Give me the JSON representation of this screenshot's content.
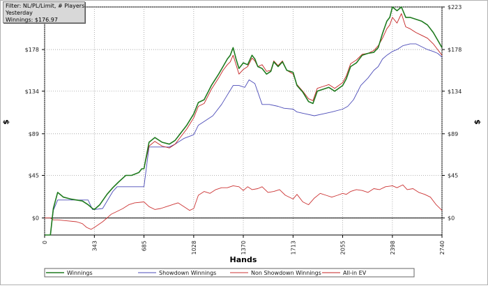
{
  "filter_box": {
    "line1": "Filter: NL/PL/Limit, # Players",
    "line2": "Yesterday",
    "line3": "Winnings: $176.97"
  },
  "chart_data": {
    "type": "line",
    "xlabel": "Hands",
    "ylabel": "$",
    "xlim": [
      0,
      2740
    ],
    "ylim": [
      -18,
      223
    ],
    "x_ticks": [
      0,
      343,
      685,
      1028,
      1370,
      1713,
      2055,
      2398,
      2740
    ],
    "y_ticks": [
      {
        "value": 0,
        "label": "$0"
      },
      {
        "value": 45,
        "label": "$45"
      },
      {
        "value": 89,
        "label": "$89"
      },
      {
        "value": 134,
        "label": "$134"
      },
      {
        "value": 178,
        "label": "$178"
      },
      {
        "value": 223,
        "label": "$223"
      }
    ],
    "grid": true,
    "legend_position": "bottom",
    "series": [
      {
        "name": "Winnings",
        "color": "#1e7a1e",
        "points": [
          [
            0,
            -18
          ],
          [
            40,
            -18
          ],
          [
            60,
            10
          ],
          [
            90,
            27
          ],
          [
            130,
            22
          ],
          [
            180,
            20
          ],
          [
            260,
            18
          ],
          [
            300,
            14
          ],
          [
            330,
            10
          ],
          [
            343,
            9
          ],
          [
            380,
            14
          ],
          [
            430,
            25
          ],
          [
            470,
            32
          ],
          [
            510,
            38
          ],
          [
            560,
            45
          ],
          [
            600,
            45
          ],
          [
            650,
            48
          ],
          [
            670,
            52
          ],
          [
            685,
            52
          ],
          [
            720,
            80
          ],
          [
            760,
            85
          ],
          [
            810,
            80
          ],
          [
            860,
            78
          ],
          [
            900,
            82
          ],
          [
            940,
            90
          ],
          [
            980,
            98
          ],
          [
            1028,
            110
          ],
          [
            1060,
            122
          ],
          [
            1100,
            125
          ],
          [
            1150,
            140
          ],
          [
            1200,
            152
          ],
          [
            1230,
            160
          ],
          [
            1260,
            168
          ],
          [
            1280,
            172
          ],
          [
            1300,
            180
          ],
          [
            1320,
            168
          ],
          [
            1340,
            158
          ],
          [
            1370,
            164
          ],
          [
            1400,
            162
          ],
          [
            1430,
            172
          ],
          [
            1450,
            168
          ],
          [
            1470,
            160
          ],
          [
            1500,
            158
          ],
          [
            1530,
            152
          ],
          [
            1560,
            155
          ],
          [
            1580,
            165
          ],
          [
            1610,
            160
          ],
          [
            1640,
            165
          ],
          [
            1670,
            156
          ],
          [
            1713,
            154
          ],
          [
            1740,
            140
          ],
          [
            1780,
            133
          ],
          [
            1820,
            123
          ],
          [
            1850,
            121
          ],
          [
            1880,
            134
          ],
          [
            1920,
            136
          ],
          [
            1960,
            138
          ],
          [
            2000,
            134
          ],
          [
            2055,
            140
          ],
          [
            2080,
            147
          ],
          [
            2110,
            160
          ],
          [
            2150,
            164
          ],
          [
            2190,
            172
          ],
          [
            2230,
            174
          ],
          [
            2270,
            175
          ],
          [
            2300,
            180
          ],
          [
            2330,
            195
          ],
          [
            2360,
            208
          ],
          [
            2380,
            212
          ],
          [
            2398,
            223
          ],
          [
            2430,
            219
          ],
          [
            2460,
            226
          ],
          [
            2490,
            212
          ],
          [
            2520,
            212
          ],
          [
            2560,
            210
          ],
          [
            2600,
            208
          ],
          [
            2640,
            204
          ],
          [
            2680,
            196
          ],
          [
            2710,
            188
          ],
          [
            2740,
            180
          ]
        ]
      },
      {
        "name": "Showdown Winnings",
        "color": "#4b4bb8",
        "points": [
          [
            0,
            -18
          ],
          [
            40,
            -18
          ],
          [
            60,
            8
          ],
          [
            90,
            19
          ],
          [
            200,
            19
          ],
          [
            300,
            19
          ],
          [
            330,
            9
          ],
          [
            343,
            9
          ],
          [
            400,
            10
          ],
          [
            470,
            28
          ],
          [
            500,
            33
          ],
          [
            685,
            33
          ],
          [
            720,
            75
          ],
          [
            800,
            75
          ],
          [
            860,
            75
          ],
          [
            900,
            78
          ],
          [
            960,
            84
          ],
          [
            1028,
            88
          ],
          [
            1060,
            98
          ],
          [
            1100,
            102
          ],
          [
            1160,
            108
          ],
          [
            1220,
            120
          ],
          [
            1260,
            130
          ],
          [
            1300,
            140
          ],
          [
            1340,
            140
          ],
          [
            1380,
            138
          ],
          [
            1410,
            146
          ],
          [
            1450,
            142
          ],
          [
            1500,
            120
          ],
          [
            1550,
            120
          ],
          [
            1610,
            118
          ],
          [
            1650,
            116
          ],
          [
            1713,
            115
          ],
          [
            1740,
            112
          ],
          [
            1800,
            110
          ],
          [
            1860,
            108
          ],
          [
            1920,
            110
          ],
          [
            1980,
            112
          ],
          [
            2055,
            115
          ],
          [
            2090,
            118
          ],
          [
            2130,
            125
          ],
          [
            2180,
            140
          ],
          [
            2230,
            148
          ],
          [
            2270,
            156
          ],
          [
            2300,
            160
          ],
          [
            2330,
            168
          ],
          [
            2360,
            172
          ],
          [
            2398,
            176
          ],
          [
            2430,
            178
          ],
          [
            2470,
            182
          ],
          [
            2520,
            184
          ],
          [
            2560,
            184
          ],
          [
            2600,
            181
          ],
          [
            2640,
            178
          ],
          [
            2680,
            176
          ],
          [
            2710,
            174
          ],
          [
            2740,
            170
          ]
        ]
      },
      {
        "name": "Non Showdown Winnings",
        "color": "#cc3333",
        "points": [
          [
            0,
            0
          ],
          [
            40,
            0
          ],
          [
            60,
            -2
          ],
          [
            90,
            -2
          ],
          [
            150,
            -3
          ],
          [
            220,
            -4
          ],
          [
            260,
            -6
          ],
          [
            290,
            -10
          ],
          [
            320,
            -12
          ],
          [
            343,
            -10
          ],
          [
            400,
            -4
          ],
          [
            430,
            0
          ],
          [
            460,
            4
          ],
          [
            500,
            7
          ],
          [
            540,
            10
          ],
          [
            580,
            14
          ],
          [
            620,
            16
          ],
          [
            685,
            17
          ],
          [
            720,
            12
          ],
          [
            760,
            9
          ],
          [
            800,
            10
          ],
          [
            840,
            12
          ],
          [
            880,
            14
          ],
          [
            920,
            16
          ],
          [
            960,
            12
          ],
          [
            1000,
            8
          ],
          [
            1028,
            10
          ],
          [
            1060,
            24
          ],
          [
            1100,
            28
          ],
          [
            1140,
            26
          ],
          [
            1180,
            30
          ],
          [
            1220,
            32
          ],
          [
            1260,
            32
          ],
          [
            1300,
            34
          ],
          [
            1340,
            33
          ],
          [
            1370,
            29
          ],
          [
            1400,
            33
          ],
          [
            1430,
            30
          ],
          [
            1470,
            31
          ],
          [
            1500,
            33
          ],
          [
            1540,
            27
          ],
          [
            1580,
            28
          ],
          [
            1620,
            30
          ],
          [
            1660,
            24
          ],
          [
            1713,
            20
          ],
          [
            1740,
            25
          ],
          [
            1780,
            17
          ],
          [
            1820,
            14
          ],
          [
            1860,
            21
          ],
          [
            1900,
            26
          ],
          [
            1940,
            24
          ],
          [
            1980,
            22
          ],
          [
            2020,
            24
          ],
          [
            2055,
            26
          ],
          [
            2080,
            25
          ],
          [
            2110,
            28
          ],
          [
            2150,
            30
          ],
          [
            2190,
            29
          ],
          [
            2230,
            27
          ],
          [
            2270,
            31
          ],
          [
            2310,
            30
          ],
          [
            2350,
            33
          ],
          [
            2398,
            34
          ],
          [
            2430,
            32
          ],
          [
            2470,
            35
          ],
          [
            2500,
            30
          ],
          [
            2540,
            31
          ],
          [
            2580,
            27
          ],
          [
            2620,
            25
          ],
          [
            2660,
            22
          ],
          [
            2700,
            14
          ],
          [
            2740,
            8
          ]
        ]
      },
      {
        "name": "All-in EV",
        "color": "#c42222",
        "points": [
          [
            0,
            -18
          ],
          [
            40,
            -18
          ],
          [
            60,
            10
          ],
          [
            90,
            27
          ],
          [
            130,
            22
          ],
          [
            180,
            20
          ],
          [
            260,
            18
          ],
          [
            300,
            14
          ],
          [
            330,
            10
          ],
          [
            343,
            9
          ],
          [
            380,
            14
          ],
          [
            430,
            25
          ],
          [
            470,
            32
          ],
          [
            510,
            38
          ],
          [
            560,
            45
          ],
          [
            600,
            45
          ],
          [
            650,
            48
          ],
          [
            670,
            52
          ],
          [
            685,
            52
          ],
          [
            720,
            76
          ],
          [
            760,
            81
          ],
          [
            810,
            76
          ],
          [
            860,
            74
          ],
          [
            900,
            78
          ],
          [
            940,
            86
          ],
          [
            980,
            94
          ],
          [
            1028,
            106
          ],
          [
            1060,
            118
          ],
          [
            1100,
            121
          ],
          [
            1150,
            136
          ],
          [
            1200,
            148
          ],
          [
            1230,
            156
          ],
          [
            1260,
            162
          ],
          [
            1280,
            165
          ],
          [
            1300,
            172
          ],
          [
            1320,
            162
          ],
          [
            1340,
            152
          ],
          [
            1370,
            157
          ],
          [
            1400,
            160
          ],
          [
            1430,
            169
          ],
          [
            1450,
            166
          ],
          [
            1470,
            160
          ],
          [
            1500,
            162
          ],
          [
            1530,
            155
          ],
          [
            1560,
            156
          ],
          [
            1580,
            166
          ],
          [
            1610,
            161
          ],
          [
            1640,
            166
          ],
          [
            1670,
            156
          ],
          [
            1713,
            152
          ],
          [
            1740,
            141
          ],
          [
            1780,
            134
          ],
          [
            1820,
            126
          ],
          [
            1850,
            124
          ],
          [
            1880,
            137
          ],
          [
            1920,
            139
          ],
          [
            1960,
            141
          ],
          [
            2000,
            137
          ],
          [
            2055,
            143
          ],
          [
            2080,
            150
          ],
          [
            2110,
            163
          ],
          [
            2150,
            167
          ],
          [
            2190,
            173
          ],
          [
            2230,
            174
          ],
          [
            2270,
            177
          ],
          [
            2300,
            182
          ],
          [
            2330,
            190
          ],
          [
            2360,
            200
          ],
          [
            2380,
            204
          ],
          [
            2398,
            212
          ],
          [
            2430,
            206
          ],
          [
            2460,
            216
          ],
          [
            2490,
            202
          ],
          [
            2520,
            200
          ],
          [
            2560,
            196
          ],
          [
            2600,
            193
          ],
          [
            2640,
            190
          ],
          [
            2680,
            184
          ],
          [
            2710,
            178
          ],
          [
            2740,
            172
          ]
        ]
      }
    ]
  }
}
